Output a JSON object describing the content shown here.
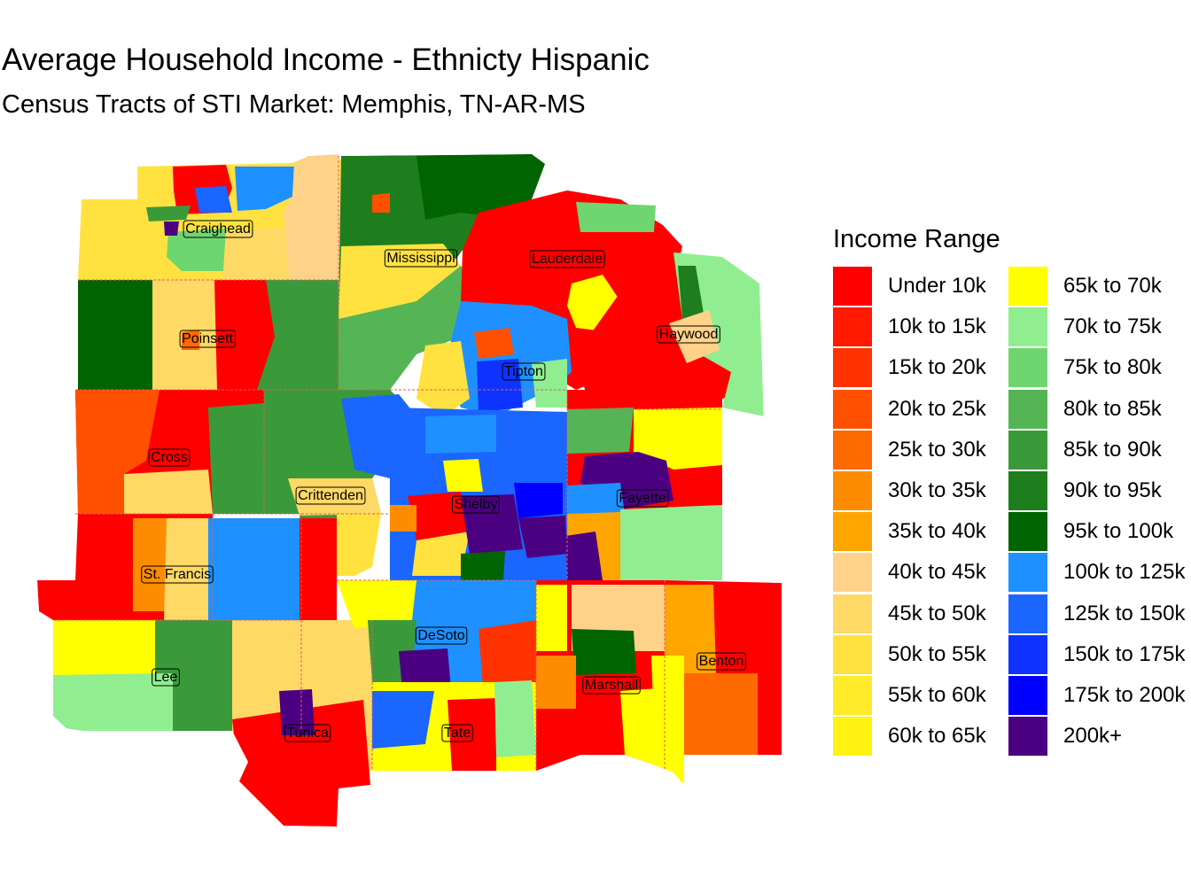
{
  "title": "Average Household Income - Ethnicty Hispanic",
  "subtitle": "Census Tracts of STI Market: Memphis, TN-AR-MS",
  "legend": {
    "title": "Income Range",
    "items": [
      {
        "label": "Under 10k",
        "color": "#FF0000"
      },
      {
        "label": "10k to 15k",
        "color": "#FF1A00"
      },
      {
        "label": "15k to 20k",
        "color": "#FF3300"
      },
      {
        "label": "20k to 25k",
        "color": "#FF5000"
      },
      {
        "label": "25k to 30k",
        "color": "#FF6A00"
      },
      {
        "label": "30k to 35k",
        "color": "#FF8C00"
      },
      {
        "label": "35k to 40k",
        "color": "#FFA500"
      },
      {
        "label": "40k to 45k",
        "color": "#FFD28A"
      },
      {
        "label": "45k to 50k",
        "color": "#FFD966"
      },
      {
        "label": "50k to 55k",
        "color": "#FFE240"
      },
      {
        "label": "55k to 60k",
        "color": "#FFEB2A"
      },
      {
        "label": "60k to 65k",
        "color": "#FFF314"
      },
      {
        "label": "65k to 70k",
        "color": "#FFFF00"
      },
      {
        "label": "70k to 75k",
        "color": "#90EE90"
      },
      {
        "label": "75k to 80k",
        "color": "#6FD66F"
      },
      {
        "label": "80k to 85k",
        "color": "#55B555"
      },
      {
        "label": "85k to 90k",
        "color": "#3A9A3A"
      },
      {
        "label": "90k to 95k",
        "color": "#1E7E1E"
      },
      {
        "label": "95k to 100k",
        "color": "#006400"
      },
      {
        "label": "100k to 125k",
        "color": "#1E90FF"
      },
      {
        "label": "125k to 150k",
        "color": "#1A66FF"
      },
      {
        "label": "150k to 175k",
        "color": "#0F33FF"
      },
      {
        "label": "175k to 200k",
        "color": "#0000FF"
      },
      {
        "label": "200k+",
        "color": "#4B0082"
      }
    ]
  },
  "counties": [
    {
      "name": "Craighead",
      "bracket": "85k to 90k"
    },
    {
      "name": "Mississippi",
      "bracket": "80k to 85k"
    },
    {
      "name": "Lauderdale",
      "bracket": "Under 10k"
    },
    {
      "name": "Poinsett",
      "bracket": "Under 10k"
    },
    {
      "name": "Haywood",
      "bracket": "Under 10k"
    },
    {
      "name": "Tipton",
      "bracket": "100k to 125k"
    },
    {
      "name": "Cross",
      "bracket": "Under 10k"
    },
    {
      "name": "Crittenden",
      "bracket": "85k to 90k"
    },
    {
      "name": "Shelby",
      "bracket": "125k to 150k"
    },
    {
      "name": "Fayette",
      "bracket": "Under 10k"
    },
    {
      "name": "St. Francis",
      "bracket": "Under 10k"
    },
    {
      "name": "Lee",
      "bracket": "85k to 90k"
    },
    {
      "name": "DeSoto",
      "bracket": "100k to 125k"
    },
    {
      "name": "Marshall",
      "bracket": "Under 10k"
    },
    {
      "name": "Benton",
      "bracket": "30k to 35k"
    },
    {
      "name": "Tunica",
      "bracket": "Under 10k"
    },
    {
      "name": "Tate",
      "bracket": "55k to 60k"
    }
  ]
}
